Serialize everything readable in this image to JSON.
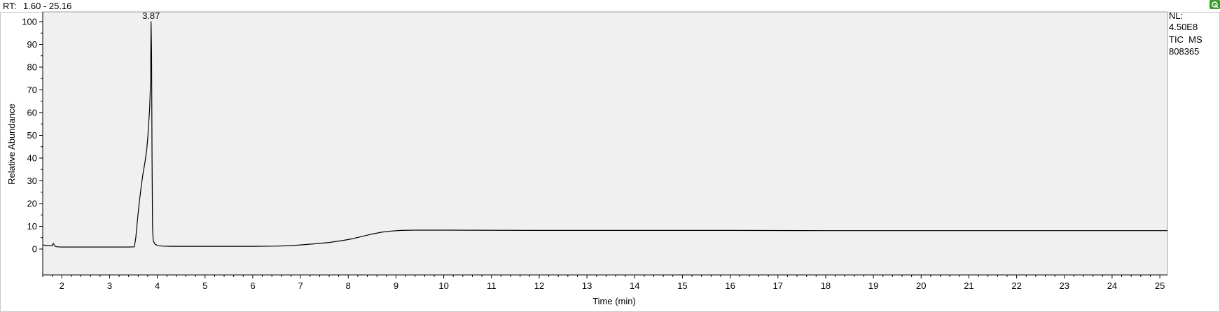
{
  "header": {
    "rt_label": "RT:",
    "rt_range": "1.60 - 25.16",
    "rt_range_color": "#1a1aa8"
  },
  "info_panel": {
    "nl_label": "NL:",
    "nl_value": "4.50E8",
    "trace_label": "TIC  MS",
    "sample_id": "808365"
  },
  "corner_icon": "pin-icon",
  "colors": {
    "plot_background": "#f0f0f0",
    "trace": "#000000",
    "corner_icon": "#3a9a2a"
  },
  "chart_data": {
    "type": "line",
    "title": "",
    "xlabel": "Time (min)",
    "ylabel": "Relative Abundance",
    "xlim": [
      1.6,
      25.16
    ],
    "ylim": [
      0,
      100
    ],
    "xticks": [
      2,
      3,
      4,
      5,
      6,
      7,
      8,
      9,
      10,
      11,
      12,
      13,
      14,
      15,
      16,
      17,
      18,
      19,
      20,
      21,
      22,
      23,
      24,
      25
    ],
    "yticks": [
      0,
      10,
      20,
      30,
      40,
      50,
      60,
      70,
      80,
      90,
      100
    ],
    "peak_labels": [
      {
        "x": 3.87,
        "y": 100,
        "label": "3.87"
      }
    ],
    "series": [
      {
        "name": "TIC MS",
        "x": [
          1.6,
          1.7,
          1.8,
          1.82,
          1.84,
          1.86,
          1.9,
          2.0,
          2.5,
          3.0,
          3.4,
          3.52,
          3.55,
          3.58,
          3.62,
          3.66,
          3.7,
          3.74,
          3.78,
          3.8,
          3.82,
          3.84,
          3.86,
          3.87,
          3.88,
          3.89,
          3.9,
          3.91,
          3.92,
          3.93,
          3.95,
          4.0,
          4.1,
          4.3,
          4.6,
          5.0,
          6.0,
          6.5,
          6.8,
          7.0,
          7.3,
          7.6,
          7.9,
          8.1,
          8.3,
          8.5,
          8.7,
          8.9,
          9.1,
          9.4,
          10.0,
          12.0,
          14.0,
          16.0,
          18.0,
          20.0,
          22.0,
          24.0,
          25.16
        ],
        "y": [
          1.8,
          1.5,
          1.4,
          2.5,
          1.8,
          1.2,
          1.0,
          0.9,
          0.9,
          0.9,
          0.9,
          1.0,
          5.0,
          12.0,
          20.0,
          27.0,
          33.0,
          38.0,
          44.0,
          49.0,
          55.0,
          62.0,
          75.0,
          100.0,
          87.0,
          40.0,
          10.0,
          5.0,
          3.5,
          3.0,
          2.2,
          1.6,
          1.3,
          1.2,
          1.2,
          1.2,
          1.2,
          1.3,
          1.5,
          1.8,
          2.3,
          2.9,
          3.8,
          4.6,
          5.6,
          6.6,
          7.4,
          7.9,
          8.2,
          8.3,
          8.3,
          8.2,
          8.2,
          8.2,
          8.1,
          8.1,
          8.1,
          8.1,
          8.1
        ]
      }
    ]
  }
}
